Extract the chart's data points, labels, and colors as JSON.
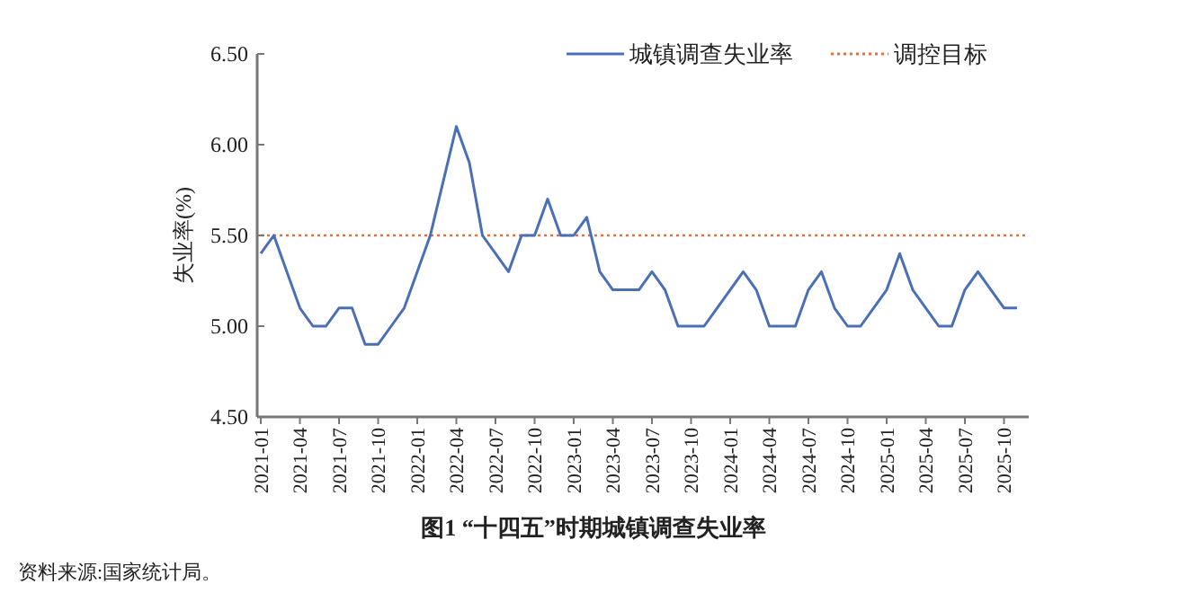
{
  "chart_data": {
    "type": "line",
    "title": "图1 “十四五”时期城镇调查失业率",
    "ylabel": "失业率(%)",
    "categories": [
      "2021-01",
      null,
      null,
      "2021-04",
      null,
      null,
      "2021-07",
      null,
      null,
      "2021-10",
      null,
      null,
      "2022-01",
      null,
      null,
      "2022-04",
      null,
      null,
      "2022-07",
      null,
      null,
      "2022-10",
      null,
      null,
      "2023-01",
      null,
      null,
      "2023-04",
      null,
      null,
      "2023-07",
      null,
      null,
      "2023-10",
      null,
      null,
      "2024-01",
      null,
      null,
      "2024-04",
      null,
      null,
      "2024-07",
      null,
      null,
      "2024-10",
      null,
      null,
      "2025-01",
      null,
      null,
      "2025-04",
      null,
      null,
      "2025-07",
      null,
      null,
      "2025-10",
      null
    ],
    "series": [
      {
        "name": "城镇调查失业率",
        "color": "#4a6fb5",
        "values": [
          5.4,
          5.5,
          5.3,
          5.1,
          5.0,
          5.0,
          5.1,
          5.1,
          4.9,
          4.9,
          5.0,
          5.1,
          5.3,
          5.5,
          5.8,
          6.1,
          5.9,
          5.5,
          5.4,
          5.3,
          5.5,
          5.5,
          5.7,
          5.5,
          5.5,
          5.6,
          5.3,
          5.2,
          5.2,
          5.2,
          5.3,
          5.2,
          5.0,
          5.0,
          5.0,
          5.1,
          5.2,
          5.3,
          5.2,
          5.0,
          5.0,
          5.0,
          5.2,
          5.3,
          5.1,
          5.0,
          5.0,
          5.1,
          5.2,
          5.4,
          5.2,
          5.1,
          5.0,
          5.0,
          5.2,
          5.3,
          5.2,
          5.1,
          5.1
        ]
      }
    ],
    "ref_lines": [
      {
        "axis": "y",
        "value": 5.5,
        "label": "调控目标",
        "color": "#e07040",
        "line_style": "dotted"
      }
    ],
    "ylim": [
      4.5,
      6.5
    ],
    "yticks": [
      {
        "value": 4.5,
        "label": "4.50"
      },
      {
        "value": 5,
        "label": "5.00"
      },
      {
        "value": 5.5,
        "label": "5.50"
      },
      {
        "value": 6,
        "label": "6.00"
      },
      {
        "value": 6.5,
        "label": "6.50"
      }
    ],
    "grid": false,
    "legend": "top right",
    "marker": "none",
    "line_style": "solid",
    "annotations": [
      "资料来源:国家统计局。"
    ]
  }
}
